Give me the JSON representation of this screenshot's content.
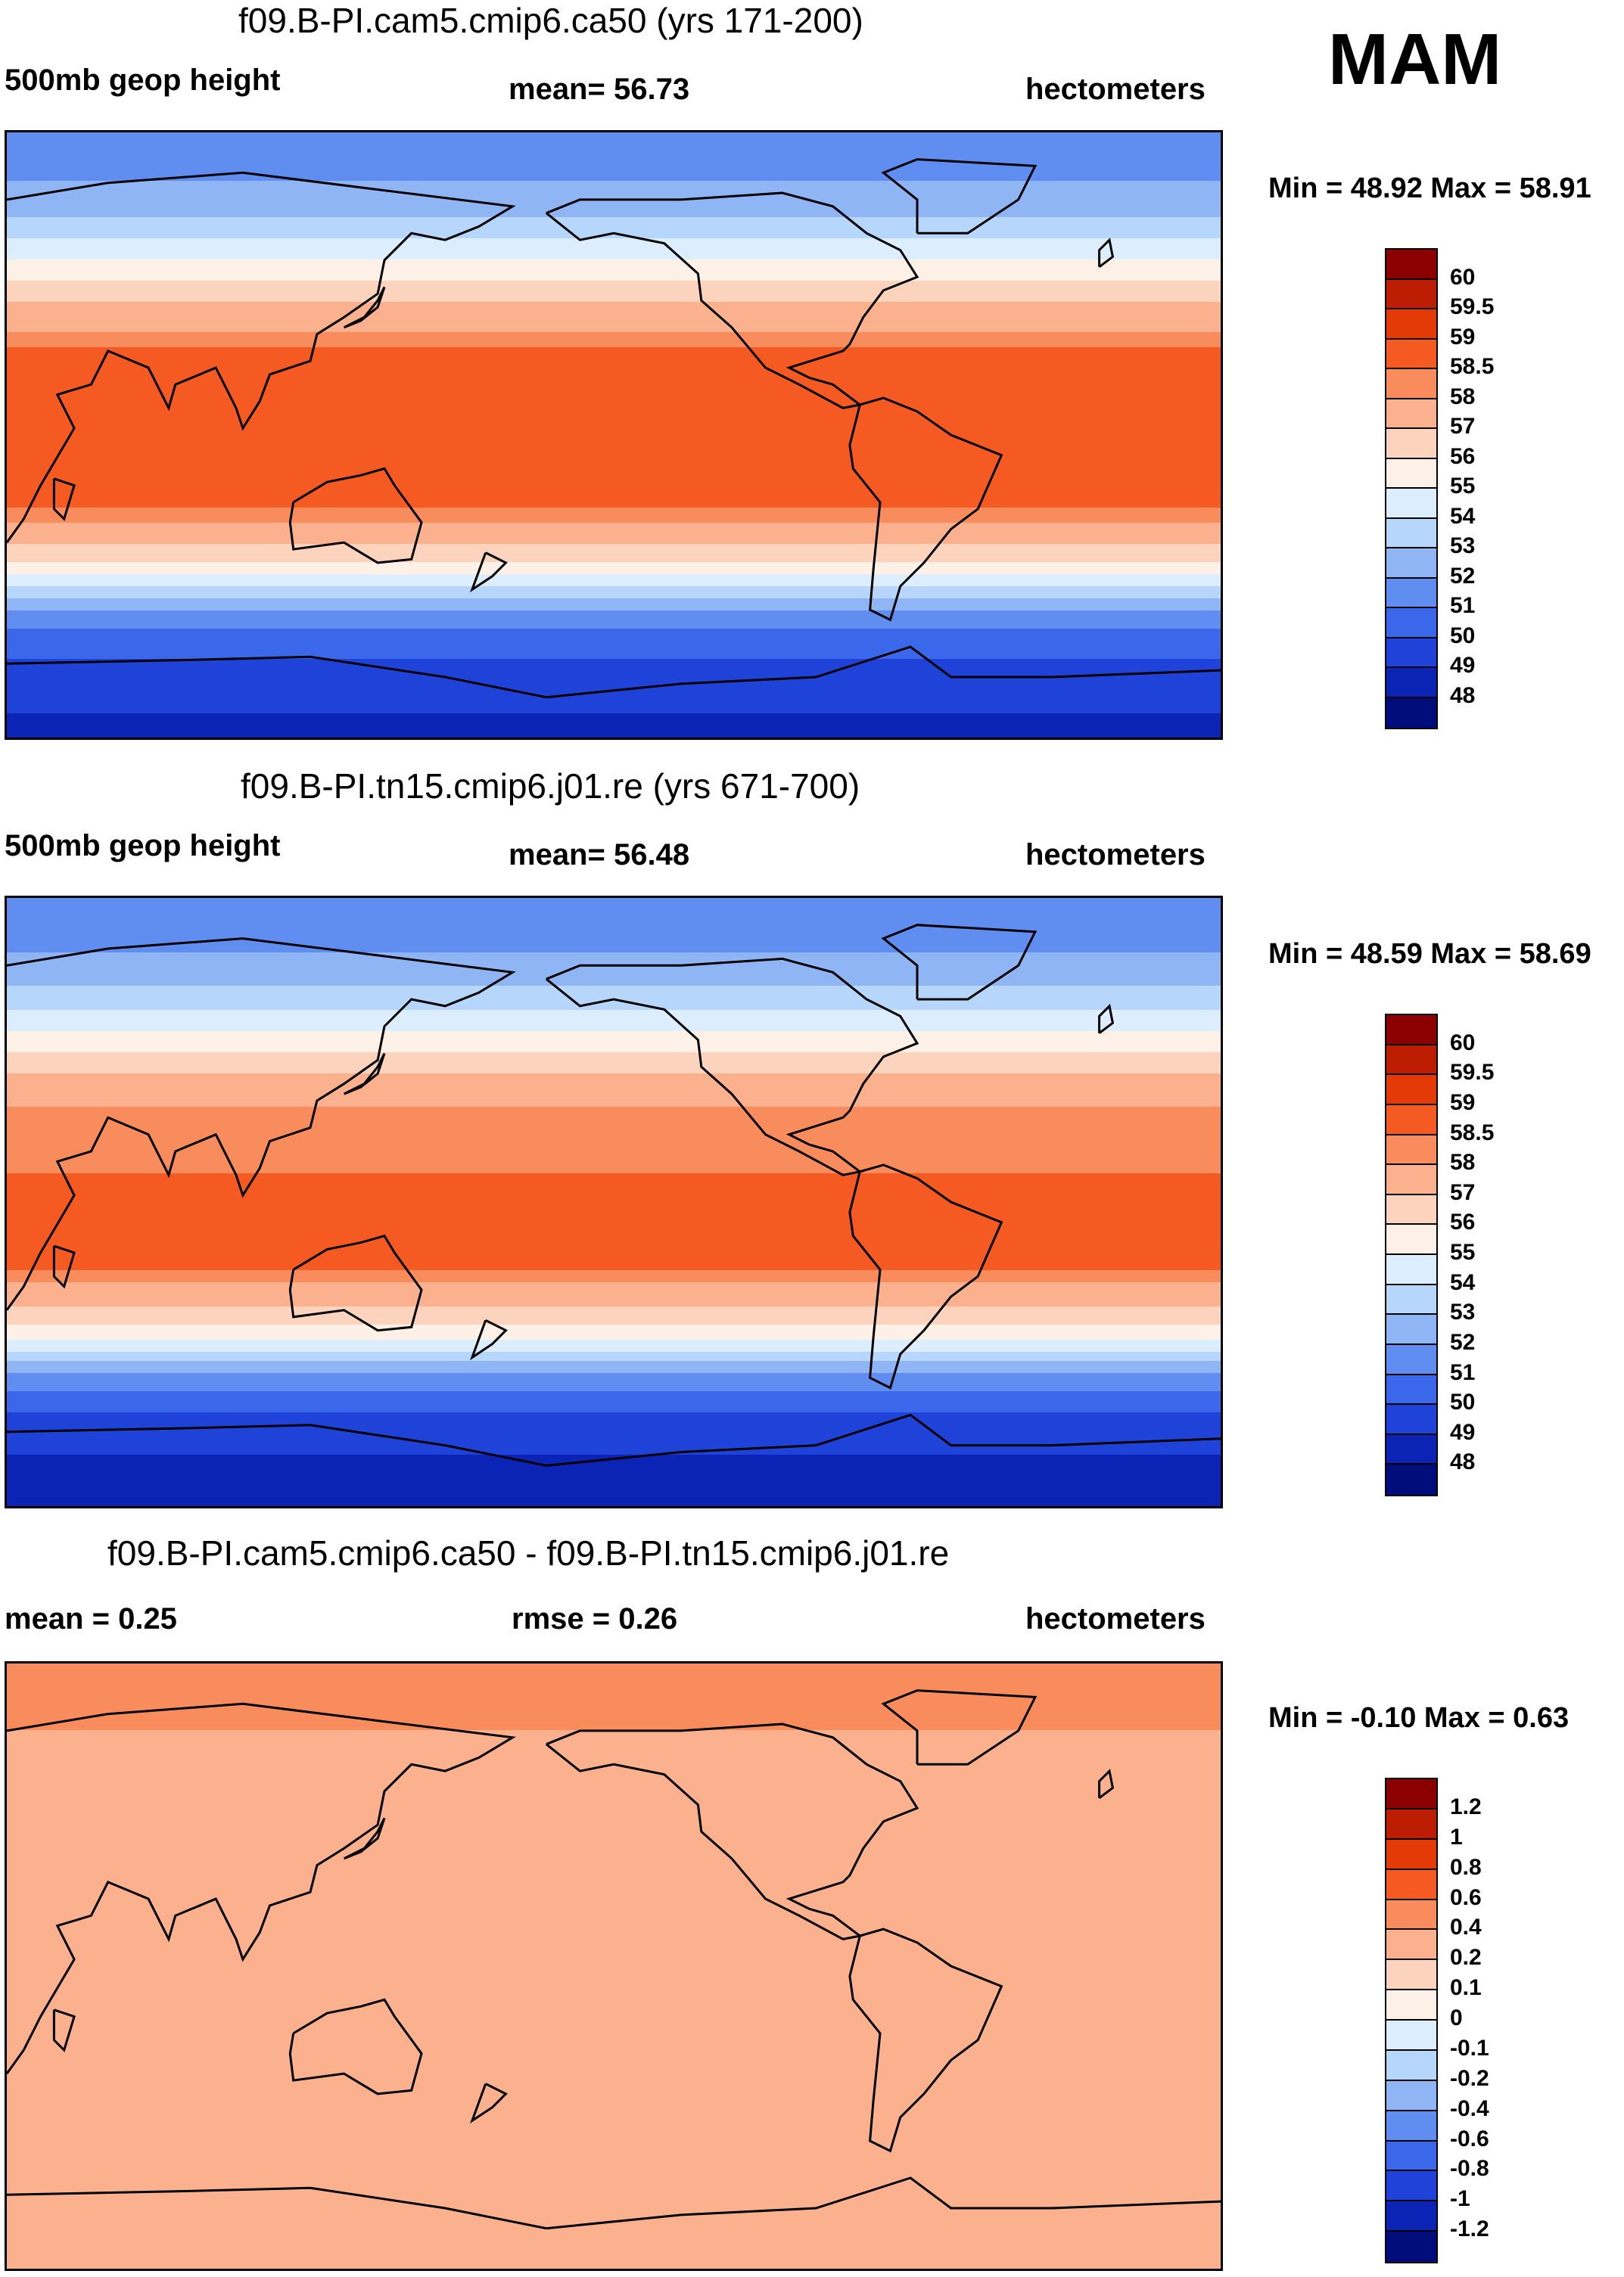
{
  "season": "MAM",
  "panels": [
    {
      "title": "f09.B-PI.cam5.cmip6.ca50 (yrs 171-200)",
      "left_label": "500mb geop height",
      "center_label": "mean=  56.73",
      "right_label": "hectometers",
      "minmax": "Min =  48.92 Max =  58.91"
    },
    {
      "title": "f09.B-PI.tn15.cmip6.j01.re (yrs 671-700)",
      "left_label": "500mb geop height",
      "center_label": "mean=  56.48",
      "right_label": "hectometers",
      "minmax": "Min =  48.59 Max =  58.69"
    },
    {
      "title": "f09.B-PI.cam5.cmip6.ca50 - f09.B-PI.tn15.cmip6.j01.re",
      "left_label": "mean =   0.25",
      "center_label": "rmse =   0.26",
      "right_label": "hectometers",
      "minmax": "Min =  -0.10 Max =   0.63"
    }
  ],
  "chart_data": [
    {
      "type": "heatmap",
      "title": "f09.B-PI.cam5.cmip6.ca50 (yrs 171-200)",
      "variable": "500mb geop height",
      "units": "hectometers",
      "mean": 56.73,
      "min": 48.92,
      "max": 58.91,
      "colorbar_levels": [
        "60",
        "59.5",
        "59",
        "58.5",
        "58",
        "57",
        "56",
        "55",
        "54",
        "53",
        "52",
        "51",
        "50",
        "49",
        "48"
      ],
      "colors": [
        "#8b0000",
        "#bd1e03",
        "#e33a08",
        "#f45a22",
        "#f98c5c",
        "#fbb08e",
        "#fcd3bd",
        "#fdf0e6",
        "#dceefe",
        "#b7d6fb",
        "#8fb5f5",
        "#5f8df0",
        "#3b67ea",
        "#1f43d8",
        "#0b24b5",
        "#000d7a"
      ],
      "lat_band_values": [
        {
          "lat": 80,
          "value": 51.6
        },
        {
          "lat": 65,
          "value": 53.0
        },
        {
          "lat": 50,
          "value": 55.3
        },
        {
          "lat": 38,
          "value": 57.3
        },
        {
          "lat": 25,
          "value": 58.6
        },
        {
          "lat": 0,
          "value": 58.8
        },
        {
          "lat": -20,
          "value": 58.7
        },
        {
          "lat": -30,
          "value": 57.5
        },
        {
          "lat": -40,
          "value": 55.5
        },
        {
          "lat": -50,
          "value": 52.5
        },
        {
          "lat": -60,
          "value": 50.5
        },
        {
          "lat": -75,
          "value": 49.3
        },
        {
          "lat": -85,
          "value": 48.9
        }
      ]
    },
    {
      "type": "heatmap",
      "title": "f09.B-PI.tn15.cmip6.j01.re (yrs 671-700)",
      "variable": "500mb geop height",
      "units": "hectometers",
      "mean": 56.48,
      "min": 48.59,
      "max": 58.69,
      "colorbar_levels": [
        "60",
        "59.5",
        "59",
        "58.5",
        "58",
        "57",
        "56",
        "55",
        "54",
        "53",
        "52",
        "51",
        "50",
        "49",
        "48"
      ],
      "colors": [
        "#8b0000",
        "#bd1e03",
        "#e33a08",
        "#f45a22",
        "#f98c5c",
        "#fbb08e",
        "#fcd3bd",
        "#fdf0e6",
        "#dceefe",
        "#b7d6fb",
        "#8fb5f5",
        "#5f8df0",
        "#3b67ea",
        "#1f43d8",
        "#0b24b5",
        "#000d7a"
      ],
      "lat_band_values": [
        {
          "lat": 80,
          "value": 51.4
        },
        {
          "lat": 65,
          "value": 52.8
        },
        {
          "lat": 50,
          "value": 55.1
        },
        {
          "lat": 38,
          "value": 57.0
        },
        {
          "lat": 25,
          "value": 58.3
        },
        {
          "lat": 0,
          "value": 58.6
        },
        {
          "lat": -20,
          "value": 58.5
        },
        {
          "lat": -30,
          "value": 57.2
        },
        {
          "lat": -40,
          "value": 55.2
        },
        {
          "lat": -50,
          "value": 52.2
        },
        {
          "lat": -60,
          "value": 50.2
        },
        {
          "lat": -75,
          "value": 49.0
        },
        {
          "lat": -85,
          "value": 48.7
        }
      ]
    },
    {
      "type": "heatmap",
      "title": "f09.B-PI.cam5.cmip6.ca50 - f09.B-PI.tn15.cmip6.j01.re",
      "variable": "difference",
      "units": "hectometers",
      "mean": 0.25,
      "rmse": 0.26,
      "min": -0.1,
      "max": 0.63,
      "colorbar_levels": [
        "1.2",
        "1",
        "0.8",
        "0.6",
        "0.4",
        "0.2",
        "0.1",
        "0",
        "-0.1",
        "-0.2",
        "-0.4",
        "-0.6",
        "-0.8",
        "-1",
        "-1.2"
      ],
      "colors": [
        "#8b0000",
        "#bd1e03",
        "#e33a08",
        "#f45a22",
        "#f98c5c",
        "#fbb08e",
        "#fcd3bd",
        "#fdf0e6",
        "#dceefe",
        "#b7d6fb",
        "#8fb5f5",
        "#5f8df0",
        "#3b67ea",
        "#1f43d8",
        "#0b24b5",
        "#000d7a"
      ],
      "lat_band_values": [
        {
          "lat": 80,
          "value": 0.5
        },
        {
          "lat": 60,
          "value": 0.3
        },
        {
          "lat": 40,
          "value": 0.25
        },
        {
          "lat": 0,
          "value": 0.3
        },
        {
          "lat": -40,
          "value": 0.3
        },
        {
          "lat": -60,
          "value": 0.2
        },
        {
          "lat": -75,
          "value": 0.3
        }
      ]
    }
  ]
}
